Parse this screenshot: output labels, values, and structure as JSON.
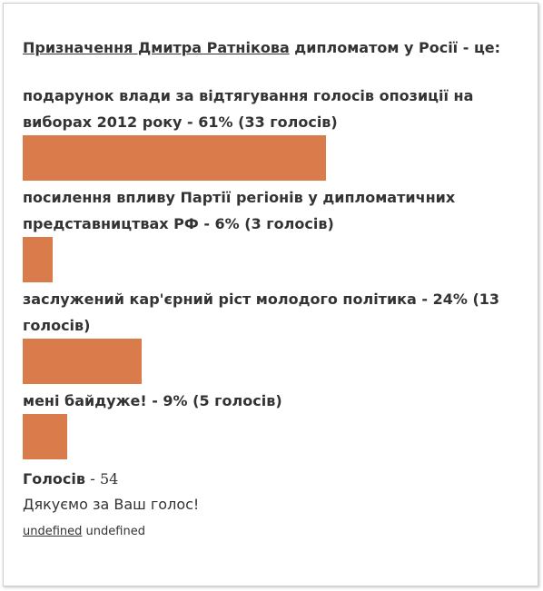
{
  "poll": {
    "question_link": "Призначення Дмитра Ратнікова",
    "question_rest": " дипломатом у Росії - це:",
    "bar_color": "#d97b4a",
    "answers": [
      {
        "label": "подарунок влади за відтягування голосів опозиції на виборах 2012 року - 61% (33 голосів)",
        "percent": 61
      },
      {
        "label": "посилення впливу Партії регіонів у дипломатичних представництвах РФ - 6% (3 голосів)",
        "percent": 6
      },
      {
        "label": "заслужений кар'єрний ріст молодого політика - 24% (13 голосів)",
        "percent": 24
      },
      {
        "label": "мені байдуже! - 9% (5 голосів)",
        "percent": 9
      }
    ],
    "total_label": "Голосів",
    "total_sep": " - ",
    "total_value": "54",
    "thanks": "Дякуємо за Ваш голос!",
    "footer_link": "undefined",
    "footer_text": " undefined"
  }
}
